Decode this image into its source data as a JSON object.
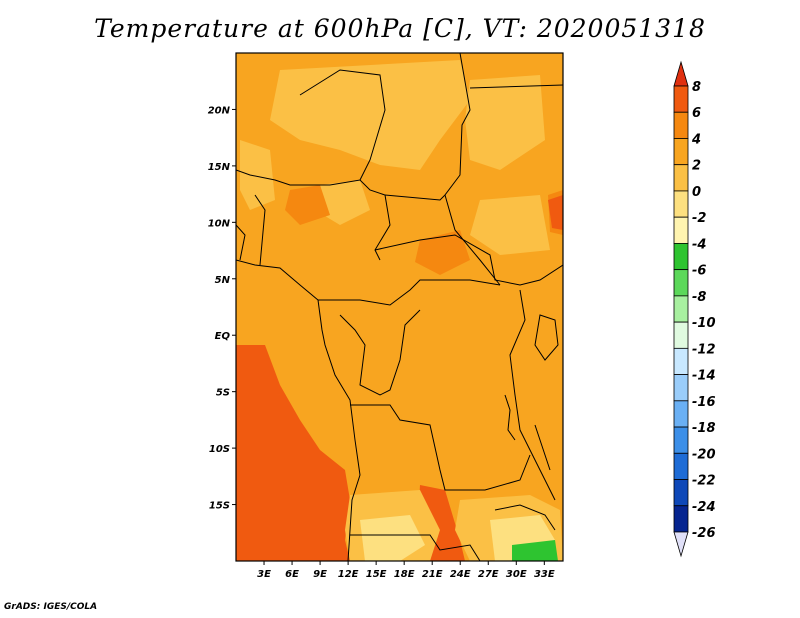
{
  "title": "Temperature at 600hPa [C], VT: 2020051318",
  "credit": "GrADS: IGES/COLA",
  "map": {
    "projection": "lat-lon",
    "lon_range": [
      0,
      35
    ],
    "lat_range": [
      -20,
      25
    ],
    "lat_ticks": [
      {
        "value": 20,
        "label": "20N"
      },
      {
        "value": 15,
        "label": "15N"
      },
      {
        "value": 10,
        "label": "10N"
      },
      {
        "value": 5,
        "label": "5N"
      },
      {
        "value": 0,
        "label": "EQ"
      },
      {
        "value": -5,
        "label": "5S"
      },
      {
        "value": -10,
        "label": "10S"
      },
      {
        "value": -15,
        "label": "15S"
      }
    ],
    "lon_ticks": [
      {
        "value": 3,
        "label": "3E"
      },
      {
        "value": 6,
        "label": "6E"
      },
      {
        "value": 9,
        "label": "9E"
      },
      {
        "value": 12,
        "label": "12E"
      },
      {
        "value": 15,
        "label": "15E"
      },
      {
        "value": 18,
        "label": "18E"
      },
      {
        "value": 21,
        "label": "21E"
      },
      {
        "value": 24,
        "label": "24E"
      },
      {
        "value": 27,
        "label": "27E"
      },
      {
        "value": 30,
        "label": "30E"
      },
      {
        "value": 33,
        "label": "33E"
      }
    ]
  },
  "colorbar": {
    "levels": [
      "8",
      "6",
      "4",
      "2",
      "0",
      "-2",
      "-4",
      "-6",
      "-8",
      "-10",
      "-12",
      "-14",
      "-16",
      "-18",
      "-20",
      "-22",
      "-24",
      "-26"
    ],
    "colors": [
      "#e03010",
      "#f05a10",
      "#f58810",
      "#f8a520",
      "#fbc045",
      "#fde080",
      "#fff4b0",
      "#2ec430",
      "#5cd85a",
      "#a8f0a0",
      "#e0fae0",
      "#c8e8ff",
      "#9acdfa",
      "#6ab0f4",
      "#3c8fe8",
      "#1e6cd6",
      "#0e48b8",
      "#062590",
      "#0a0a6a",
      "#e0e0f8"
    ]
  },
  "colors": {
    "dominant": "#f8a520",
    "warm": "#f58810",
    "hot": "#f05a10",
    "light": "#fbc045",
    "pale": "#fde080",
    "cold_green": "#2ec430"
  }
}
